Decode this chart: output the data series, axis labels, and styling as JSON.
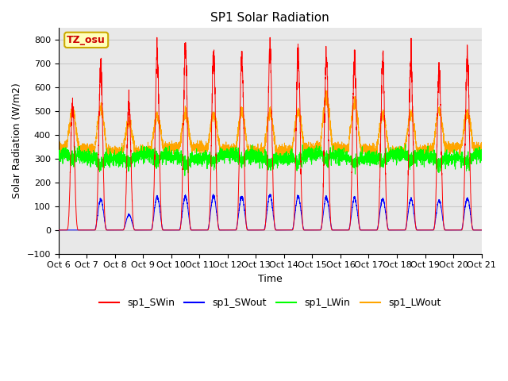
{
  "title": "SP1 Solar Radiation",
  "ylabel": "Solar Radiation (W/m2)",
  "xlabel": "Time",
  "ylim": [
    -100,
    850
  ],
  "background_color": "#ffffff",
  "plot_bg_color": "#e8e8e8",
  "grid_color": "#d0d0d0",
  "colors": {
    "SWin": "#ff0000",
    "SWout": "#0000ff",
    "LWin": "#00ff00",
    "LWout": "#ffa500"
  },
  "legend_labels": [
    "sp1_SWin",
    "sp1_SWout",
    "sp1_LWin",
    "sp1_LWout"
  ],
  "tz_label": "TZ_osu",
  "x_tick_labels": [
    "Oct 6",
    "Oct 7",
    "Oct 8",
    "Oct 9",
    "Oct 10",
    "Oct 11",
    "Oct 12",
    "Oct 13",
    "Oct 14",
    "Oct 15",
    "Oct 16",
    "Oct 17",
    "Oct 18",
    "Oct 19",
    "Oct 20",
    "Oct 21"
  ],
  "days": 15,
  "n_points": 4320,
  "SWin_peaks": [
    520,
    690,
    530,
    748,
    755,
    742,
    733,
    756,
    750,
    728,
    722,
    710,
    705,
    682,
    728,
    718
  ],
  "SWout_peaks": [
    0,
    128,
    65,
    140,
    142,
    143,
    140,
    148,
    141,
    138,
    135,
    132,
    130,
    124,
    134,
    132
  ],
  "LWin_base": 310,
  "LWout_base": 340,
  "title_fontsize": 11,
  "label_fontsize": 9,
  "tick_fontsize": 8,
  "legend_fontsize": 9
}
